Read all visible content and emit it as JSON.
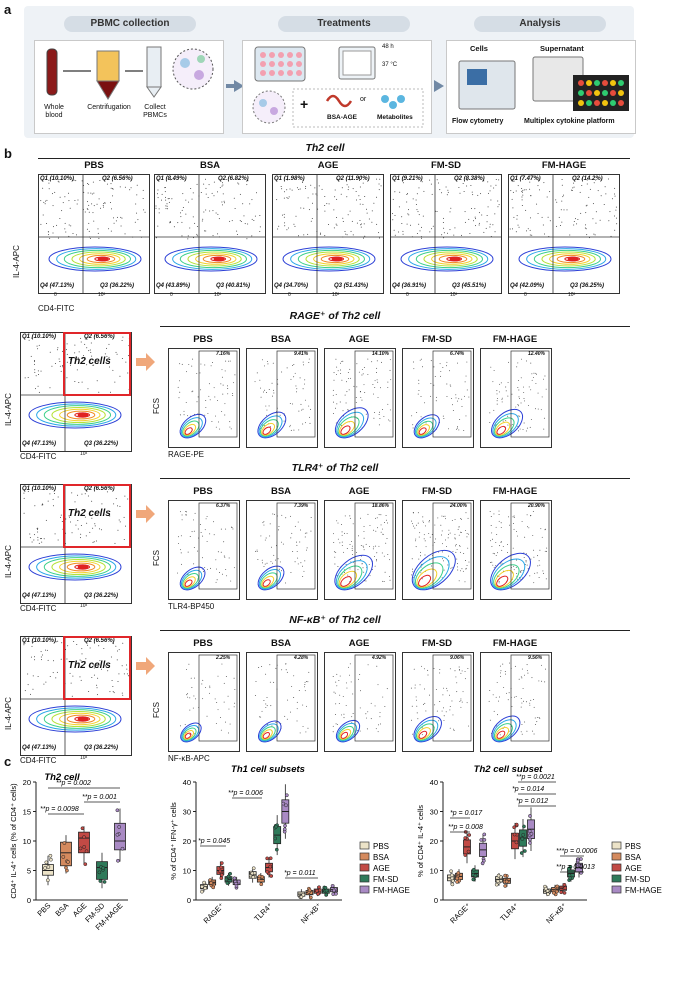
{
  "panels": {
    "a": "a",
    "b": "b",
    "c": "c"
  },
  "panel_a": {
    "headers": [
      "PBMC collection",
      "Treatments",
      "Analysis"
    ],
    "collection_labels": [
      "Whole blood",
      "Centrifugation",
      "Collect PBMCs"
    ],
    "treatment": {
      "time": "48 h",
      "temp": "37 °C",
      "bsa_age": "BSA-AGE",
      "or": "or",
      "metabolites": "Metabolites",
      "plus": "+"
    },
    "analysis": {
      "cells": "Cells",
      "supernatant": "Supernatant",
      "flow": "Flow cytometry",
      "multiplex": "Multiplex cytokine platform"
    }
  },
  "groups": [
    "PBS",
    "BSA",
    "AGE",
    "FM-SD",
    "FM-HAGE"
  ],
  "row1": {
    "title": "Th2 cell",
    "ylabel": "IL-4-APC",
    "xlabel": "CD4-FITC",
    "quadrants": [
      {
        "q1": "Q1 (10.10%)",
        "q2": "Q2 (6.56%)",
        "q3": "Q3 (36.22%)",
        "q4": "Q4 (47.13%)"
      },
      {
        "q1": "Q1 (8.49%)",
        "q2": "Q2 (6.82%)",
        "q3": "Q3 (40.81%)",
        "q4": "Q4 (43.89%)"
      },
      {
        "q1": "Q1 (1.98%)",
        "q2": "Q2 (11.90%)",
        "q3": "Q3 (51.43%)",
        "q4": "Q4 (34.70%)"
      },
      {
        "q1": "Q1 (9.21%)",
        "q2": "Q2 (8.38%)",
        "q3": "Q3 (45.51%)",
        "q4": "Q4 (36.91%)"
      },
      {
        "q1": "Q1 (7.47%)",
        "q2": "Q2 (14.2%)",
        "q3": "Q3 (36.25%)",
        "q4": "Q4 (42.09%)"
      }
    ],
    "ticks": {
      "x0": "0",
      "x3": "10³",
      "x4": "10⁴",
      "y0": "0",
      "y3": "10³"
    }
  },
  "gate_plot": {
    "q1": "Q1 (10.10%)",
    "q2": "Q2 (6.56%)",
    "q3": "Q3 (36.22%)",
    "q4": "Q4 (47.13%)",
    "ylabel": "IL-4-APC",
    "xlabel": "CD4-FITC",
    "gate_label": "Th2 cells",
    "tick": "10³"
  },
  "row2": {
    "title": "RAGE⁺ of Th2 cell",
    "ylabel": "FCS",
    "xlabel": "RAGE-PE",
    "percent_labels": [
      "7.16%",
      "9.41%",
      "14.10%",
      "6.74%",
      "12.40%"
    ],
    "percent_values": [
      7.16,
      9.41,
      14.1,
      6.74,
      12.4
    ]
  },
  "row3": {
    "title": "TLR4⁺ of Th2 cell",
    "ylabel": "FCS",
    "xlabel": "TLR4-BP450",
    "percent_labels": [
      "6.37%",
      "7.39%",
      "18.86%",
      "24.00%",
      "20.90%"
    ],
    "percent_values": [
      6.37,
      7.39,
      18.86,
      24.0,
      20.9
    ]
  },
  "row4": {
    "title": "NF-κB⁺ of Th2 cell",
    "ylabel": "FCS",
    "xlabel": "NF-κB-APC",
    "percent_labels": [
      "2.25%",
      "4.28%",
      "4.92%",
      "9.06%",
      "9.56%"
    ],
    "percent_values": [
      2.25,
      4.28,
      4.92,
      9.06,
      9.56
    ]
  },
  "colors": {
    "PBS": "#ece3c8",
    "BSA": "#d48a5e",
    "AGE": "#c24a45",
    "FM-SD": "#2f7a5a",
    "FM-HAGE": "#a98ac4",
    "gate": "#e0262a",
    "arrow": "#f0a77a",
    "flow_arrow": "#7189a5"
  },
  "chart_data": [
    {
      "type": "box",
      "title": "Th2 cell",
      "ylabel": "CD4⁺ IL-4⁺ cells (% of CD4⁺ cells)",
      "ylim": [
        0,
        20
      ],
      "yticks": [
        "0",
        "5",
        "10",
        "15",
        "20"
      ],
      "categories": [
        "PBS",
        "BSA",
        "AGE",
        "FM-SD",
        "FM-HAGE"
      ],
      "series": [
        {
          "name": "PBS",
          "q1": 4.2,
          "median": 5.0,
          "q3": 6.0,
          "min": 2.5,
          "max": 7.5
        },
        {
          "name": "BSA",
          "q1": 5.8,
          "median": 8.0,
          "q3": 9.8,
          "min": 4.5,
          "max": 11.0
        },
        {
          "name": "AGE",
          "q1": 8.0,
          "median": 10.5,
          "q3": 11.5,
          "min": 6.0,
          "max": 12.5
        },
        {
          "name": "FM-SD",
          "q1": 3.5,
          "median": 5.5,
          "q3": 6.5,
          "min": 2.0,
          "max": 8.0
        },
        {
          "name": "FM-HAGE",
          "q1": 8.5,
          "median": 10.0,
          "q3": 13.0,
          "min": 6.5,
          "max": 15.5
        }
      ],
      "pvalues": [
        "**p = 0.002",
        "**p = 0.001",
        "**p = 0.0098"
      ]
    },
    {
      "type": "box",
      "title": "Th1 cell subsets",
      "ylabel": "% of CD4⁺ IFN-γ⁺ cells",
      "ylim": [
        0,
        40
      ],
      "yticks": [
        "0",
        "10",
        "20",
        "30",
        "40"
      ],
      "categories": [
        "RAGE⁺",
        "TLR4⁺",
        "NF-κB⁺"
      ],
      "series": [
        {
          "name": "PBS",
          "values": [
            4.5,
            8.5,
            2.0
          ]
        },
        {
          "name": "BSA",
          "values": [
            6.0,
            7.0,
            2.5
          ]
        },
        {
          "name": "AGE",
          "values": [
            10.0,
            11.0,
            3.0
          ]
        },
        {
          "name": "FM-SD",
          "values": [
            7.0,
            22.0,
            3.0
          ]
        },
        {
          "name": "FM-HAGE",
          "values": [
            6.0,
            30.0,
            3.5
          ]
        }
      ],
      "pvalues": [
        "*p = 0.045",
        "**p = 0.006",
        "*p = 0.011"
      ]
    },
    {
      "type": "box",
      "title": "Th2 cell subset",
      "ylabel": "% of CD4⁺ IL-4⁺ cells",
      "ylim": [
        0,
        40
      ],
      "yticks": [
        "0",
        "10",
        "20",
        "30",
        "40"
      ],
      "categories": [
        "RAGE⁺",
        "TLR4⁺",
        "NF-κB⁺"
      ],
      "series": [
        {
          "name": "PBS",
          "values": [
            7.5,
            7.0,
            3.0
          ]
        },
        {
          "name": "BSA",
          "values": [
            8.0,
            6.5,
            3.5
          ]
        },
        {
          "name": "AGE",
          "values": [
            18.0,
            20.0,
            4.0
          ]
        },
        {
          "name": "FM-SD",
          "values": [
            9.0,
            21.0,
            9.0
          ]
        },
        {
          "name": "FM-HAGE",
          "values": [
            17.0,
            24.0,
            11.0
          ]
        }
      ],
      "pvalues": [
        "**p = 0.0021",
        "*p = 0.014",
        "*p = 0.012",
        "*p = 0.017",
        "**p = 0.008",
        "***p = 0.0006",
        "**p = 0.0013"
      ]
    }
  ],
  "legend": [
    "PBS",
    "BSA",
    "AGE",
    "FM-SD",
    "FM-HAGE"
  ]
}
